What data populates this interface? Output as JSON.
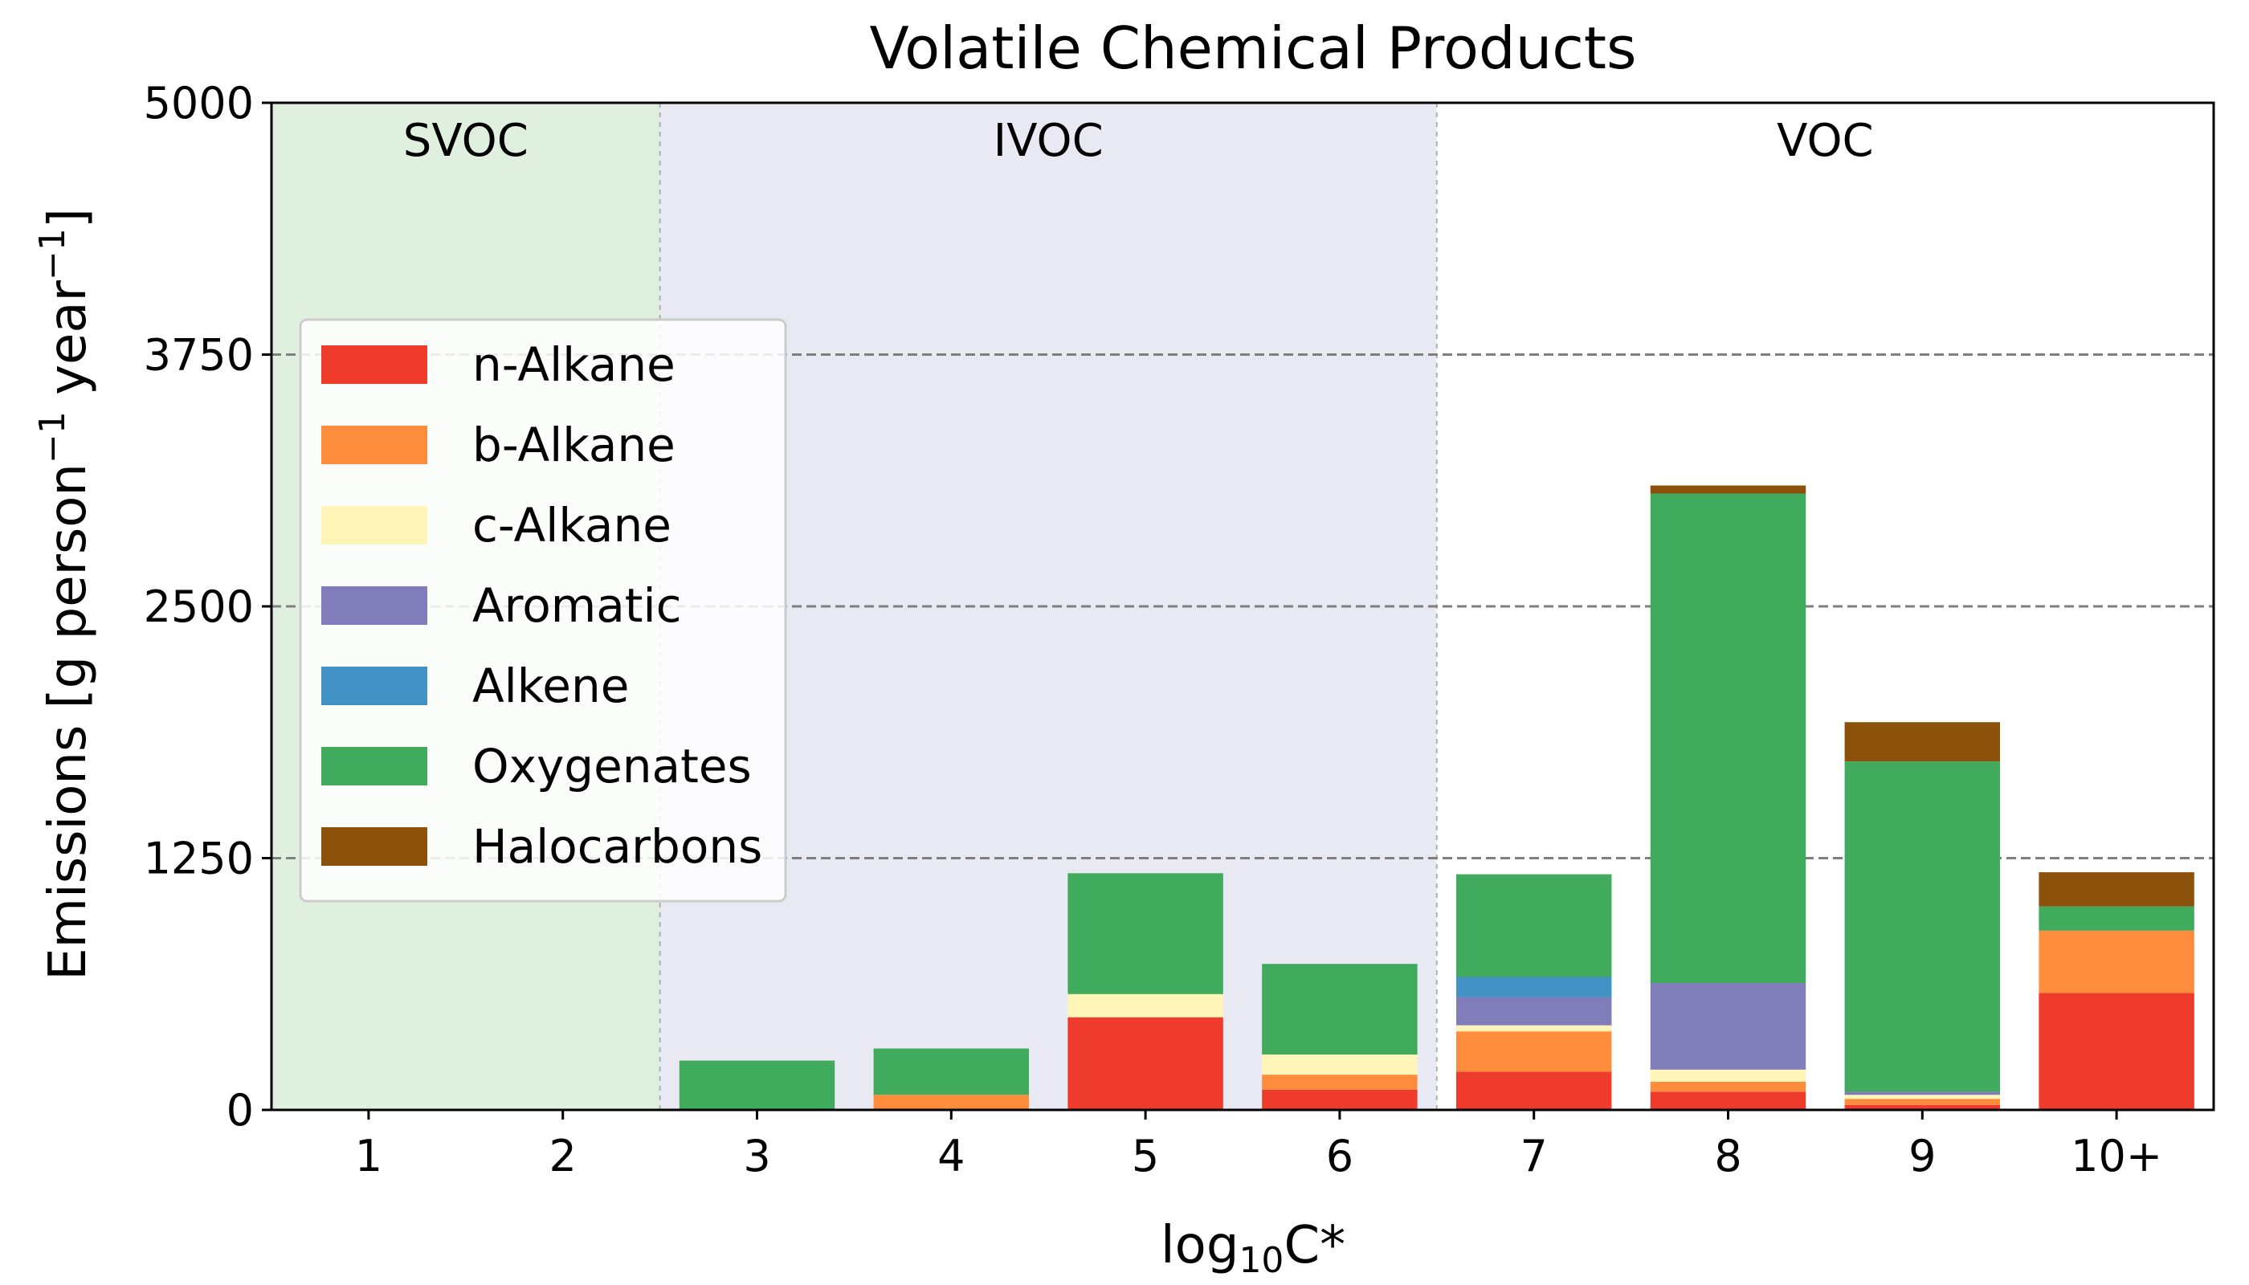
{
  "chart_data": {
    "type": "bar",
    "stacked": true,
    "title": "Volatile Chemical Products",
    "xlabel": "log",
    "xlabel_sub": "10",
    "xlabel_suffix": "C*",
    "ylabel": {
      "lead": "Emissions [g person",
      "sup1": "−1",
      "mid": " year",
      "sup2": "−1",
      "tail": "]"
    },
    "categories": [
      "1",
      "2",
      "3",
      "4",
      "5",
      "6",
      "7",
      "8",
      "9",
      "10+"
    ],
    "ylim": [
      0,
      5000
    ],
    "yticks": [
      "0",
      "1250",
      "2500",
      "3750",
      "5000"
    ],
    "grid": "horizontal dashed at 1250, 2500, 3750",
    "legend_position": "center-left",
    "regions": [
      {
        "label": "SVOC",
        "from_category": "1",
        "to_category": "2",
        "color": "#e0f0de"
      },
      {
        "label": "IVOC",
        "from_category": "3",
        "to_category": "6",
        "color": "#e9e9f3"
      },
      {
        "label": "VOC",
        "from_category": "7",
        "to_category": "10+",
        "color": "#ffffff"
      }
    ],
    "series": [
      {
        "name": "n-Alkane",
        "color": "#ef3b2c",
        "values": [
          0,
          0,
          0,
          0,
          460,
          100,
          190,
          90,
          25,
          580
        ]
      },
      {
        "name": "b-Alkane",
        "color": "#fd8d3c",
        "values": [
          0,
          0,
          0,
          75,
          0,
          75,
          200,
          50,
          30,
          310
        ]
      },
      {
        "name": "c-Alkane",
        "color": "#fff5b8",
        "values": [
          0,
          0,
          0,
          0,
          115,
          100,
          30,
          60,
          20,
          0
        ]
      },
      {
        "name": "Aromatic",
        "color": "#807dba",
        "values": [
          0,
          0,
          0,
          0,
          0,
          0,
          140,
          430,
          15,
          0
        ]
      },
      {
        "name": "Alkene",
        "color": "#4292c6",
        "values": [
          0,
          0,
          0,
          0,
          0,
          0,
          100,
          0,
          0,
          0
        ]
      },
      {
        "name": "Oxygenates",
        "color": "#41ab5d",
        "values": [
          0,
          0,
          245,
          230,
          600,
          450,
          510,
          2430,
          1640,
          120
        ]
      },
      {
        "name": "Halocarbons",
        "color": "#8c510a",
        "values": [
          0,
          0,
          0,
          0,
          0,
          0,
          0,
          40,
          195,
          170
        ]
      }
    ]
  }
}
